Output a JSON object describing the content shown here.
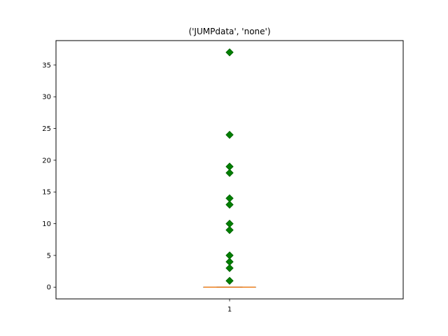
{
  "chart_data": {
    "type": "box",
    "title": "('JUMPdata', 'none')",
    "xlabel": "",
    "ylabel": "",
    "categories": [
      "1"
    ],
    "ylim": [
      -1.85,
      38.85
    ],
    "yticks": [
      0,
      5,
      10,
      15,
      20,
      25,
      30,
      35
    ],
    "grid": false,
    "boxes": [
      {
        "category": "1",
        "q1": 0,
        "median": 0,
        "q3": 0,
        "whisker_low": 0,
        "whisker_high": 0,
        "outliers": [
          37,
          24,
          19,
          18,
          14,
          13,
          10,
          9,
          5,
          4,
          3,
          1
        ]
      }
    ],
    "colors": {
      "box": "#000000",
      "median": "#ff7f0e",
      "outlier_fill": "#008000",
      "outlier_edge": "#006400"
    }
  }
}
